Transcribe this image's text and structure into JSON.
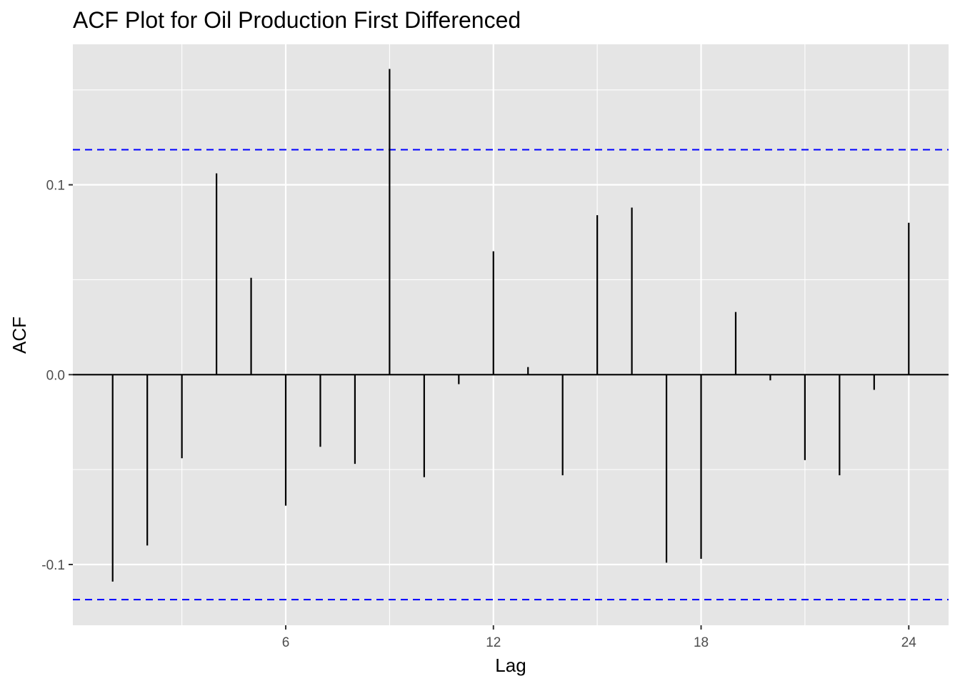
{
  "chart_data": {
    "type": "bar",
    "title": "ACF Plot for Oil Production First Differenced",
    "xlabel": "Lag",
    "ylabel": "ACF",
    "lags": [
      1,
      2,
      3,
      4,
      5,
      6,
      7,
      8,
      9,
      10,
      11,
      12,
      13,
      14,
      15,
      16,
      17,
      18,
      19,
      20,
      21,
      22,
      23,
      24
    ],
    "values": [
      -0.109,
      -0.09,
      -0.044,
      0.106,
      0.051,
      -0.069,
      -0.038,
      -0.047,
      0.161,
      -0.054,
      -0.005,
      0.065,
      0.004,
      -0.053,
      0.084,
      0.088,
      -0.099,
      -0.097,
      0.033,
      -0.003,
      -0.045,
      -0.053,
      -0.008,
      0.08
    ],
    "confidence_limit": 0.1185,
    "x_ticks": [
      6,
      12,
      18,
      24
    ],
    "x_tick_labels": [
      "6",
      "12",
      "18",
      "24"
    ],
    "y_ticks": [
      -0.1,
      0.0,
      0.1
    ],
    "y_tick_labels": [
      "-0.1",
      "0.0",
      "0.1"
    ],
    "xlim": [
      -0.15,
      25.15
    ],
    "ylim": [
      -0.132,
      0.174
    ],
    "grid": true,
    "colors": {
      "panel_background": "#e5e5e5",
      "grid": "#ffffff",
      "spike": "#000000",
      "confidence_line": "#0000ff"
    }
  }
}
